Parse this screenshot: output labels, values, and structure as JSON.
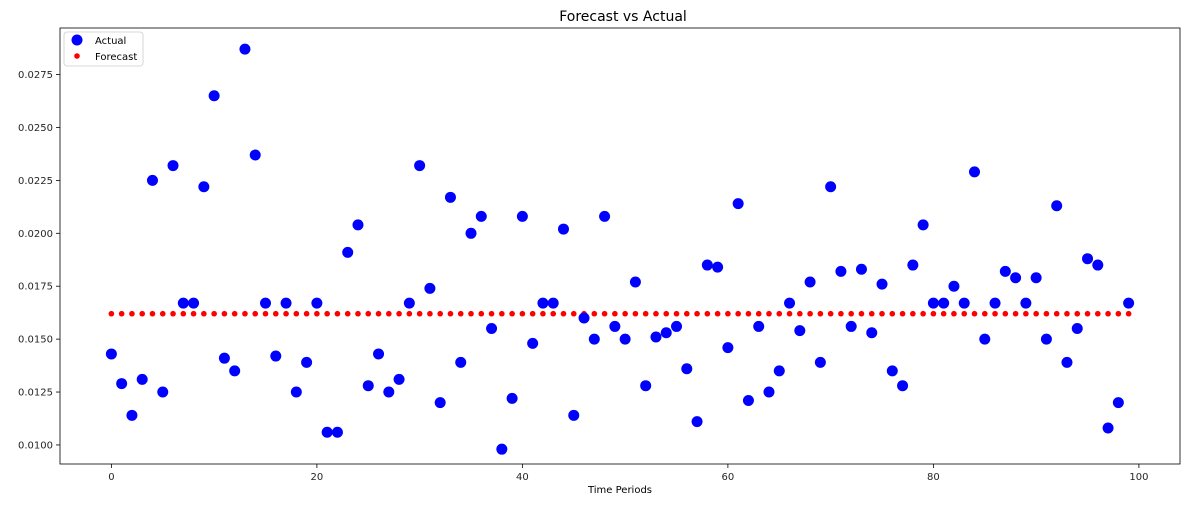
{
  "chart_data": {
    "type": "scatter",
    "title": "Forecast vs Actual",
    "xlabel": "Time Periods",
    "ylabel": "",
    "xlim": [
      -5,
      104
    ],
    "ylim": [
      0.0091,
      0.0297
    ],
    "xticks": [
      0,
      20,
      40,
      60,
      80,
      100
    ],
    "xtick_labels": [
      "0",
      "20",
      "40",
      "60",
      "80",
      "100"
    ],
    "yticks": [
      0.01,
      0.0125,
      0.015,
      0.0175,
      0.02,
      0.0225,
      0.025,
      0.0275
    ],
    "ytick_labels": [
      "0.0100",
      "0.0125",
      "0.0150",
      "0.0175",
      "0.0200",
      "0.0225",
      "0.0250",
      "0.0275"
    ],
    "grid": false,
    "legend_position": "top-left",
    "series": [
      {
        "name": "Actual",
        "color": "#0000ff",
        "marker": "large-circle",
        "x": [
          0,
          1,
          2,
          3,
          4,
          5,
          6,
          7,
          8,
          9,
          10,
          11,
          12,
          13,
          14,
          15,
          16,
          17,
          18,
          19,
          20,
          21,
          22,
          23,
          24,
          25,
          26,
          27,
          28,
          29,
          30,
          31,
          32,
          33,
          34,
          35,
          36,
          37,
          38,
          39,
          40,
          41,
          42,
          43,
          44,
          45,
          46,
          47,
          48,
          49,
          50,
          51,
          52,
          53,
          54,
          55,
          56,
          57,
          58,
          59,
          60,
          61,
          62,
          63,
          64,
          65,
          66,
          67,
          68,
          69,
          70,
          71,
          72,
          73,
          74,
          75,
          76,
          77,
          78,
          79,
          80,
          81,
          82,
          83,
          84,
          85,
          86,
          87,
          88,
          89,
          90,
          91,
          92,
          93,
          94,
          95,
          96,
          97,
          98,
          99
        ],
        "y": [
          0.0143,
          0.0129,
          0.0114,
          0.0131,
          0.0225,
          0.0125,
          0.0232,
          0.0167,
          0.0167,
          0.0222,
          0.0265,
          0.0141,
          0.0135,
          0.0287,
          0.0237,
          0.0167,
          0.0142,
          0.0167,
          0.0125,
          0.0139,
          0.0167,
          0.0106,
          0.0106,
          0.0191,
          0.0204,
          0.0128,
          0.0143,
          0.0125,
          0.0131,
          0.0167,
          0.0232,
          0.0174,
          0.012,
          0.0217,
          0.0139,
          0.02,
          0.0208,
          0.0155,
          0.0098,
          0.0122,
          0.0208,
          0.0148,
          0.0167,
          0.0167,
          0.0202,
          0.0114,
          0.016,
          0.015,
          0.0208,
          0.0156,
          0.015,
          0.0177,
          0.0128,
          0.0151,
          0.0153,
          0.0156,
          0.0136,
          0.0111,
          0.0185,
          0.0184,
          0.0146,
          0.0214,
          0.0121,
          0.0156,
          0.0125,
          0.0135,
          0.0167,
          0.0154,
          0.0177,
          0.0139,
          0.0222,
          0.0182,
          0.0156,
          0.0183,
          0.0153,
          0.0176,
          0.0135,
          0.0128,
          0.0185,
          0.0204,
          0.0167,
          0.0167,
          0.0175,
          0.0167,
          0.0229,
          0.015,
          0.0167,
          0.0182,
          0.0179,
          0.0167,
          0.0179,
          0.015,
          0.0213,
          0.0139,
          0.0155,
          0.0188,
          0.0185,
          0.0108,
          0.012,
          0.0167
        ]
      },
      {
        "name": "Forecast",
        "color": "#ff0000",
        "marker": "small-circle",
        "constant_y": 0.0162,
        "x_start": 0,
        "x_end": 99
      }
    ]
  }
}
